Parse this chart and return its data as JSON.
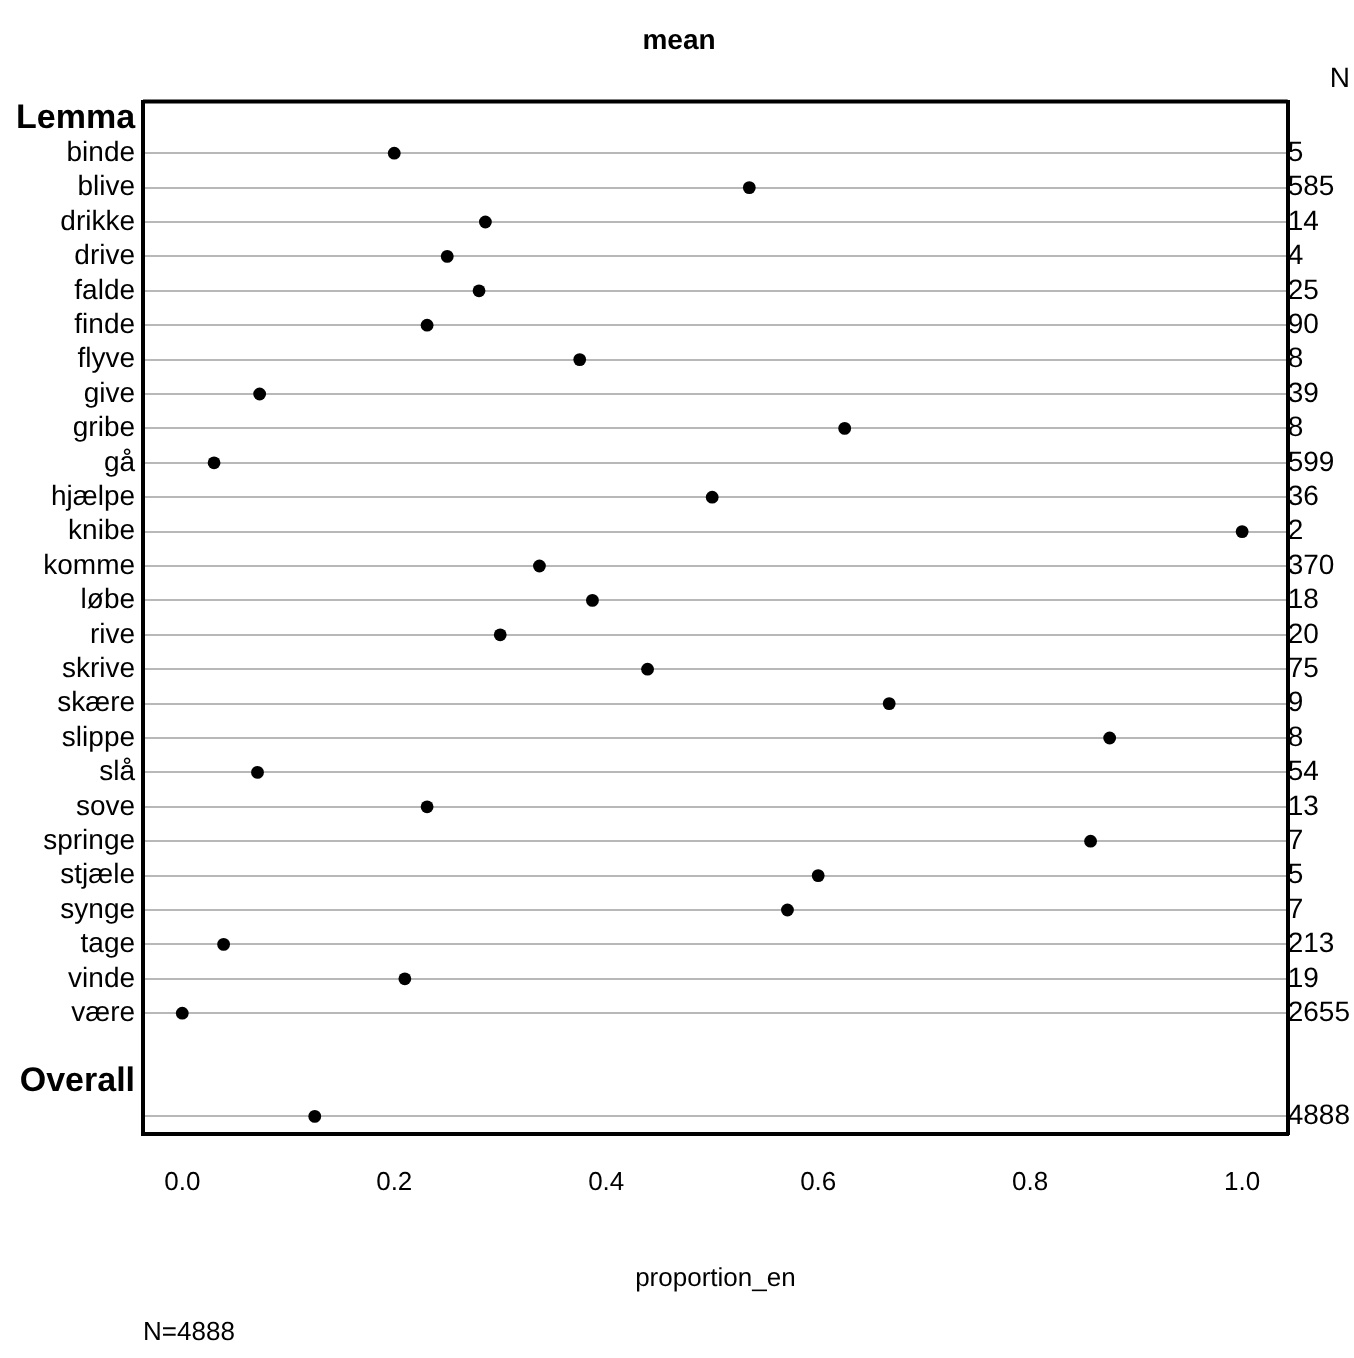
{
  "chart_data": {
    "type": "scatter",
    "orientation": "horizontal",
    "title": "mean",
    "xlabel": "proportion_en",
    "y2label": "N",
    "categories": [
      "Lemma",
      "binde",
      "blive",
      "drikke",
      "drive",
      "falde",
      "finde",
      "flyve",
      "give",
      "gribe",
      "gå",
      "hjælpe",
      "knibe",
      "komme",
      "løbe",
      "rive",
      "skrive",
      "skære",
      "slippe",
      "slå",
      "sove",
      "springe",
      "stjæle",
      "synge",
      "tage",
      "vinde",
      "være",
      null,
      "Overall",
      null
    ],
    "y2_categories": [
      null,
      "5",
      "585",
      "14",
      "4",
      "25",
      "90",
      "8",
      "39",
      "8",
      "599",
      "36",
      "2",
      "370",
      "18",
      "20",
      "75",
      "9",
      "8",
      "54",
      "13",
      "7",
      "5",
      "7",
      "213",
      "19",
      "2655",
      null,
      null,
      "4888"
    ],
    "values": [
      null,
      0.2,
      0.535,
      0.286,
      0.25,
      0.28,
      0.231,
      0.375,
      0.073,
      0.625,
      0.03,
      0.5,
      1.0,
      0.337,
      0.387,
      0.3,
      0.439,
      0.667,
      0.875,
      0.071,
      0.231,
      0.857,
      0.6,
      0.571,
      0.039,
      0.21,
      0.0,
      null,
      null,
      0.125
    ],
    "color": "#000000",
    "marker": "circle",
    "grid": "y",
    "xlim": [
      -0.037,
      1.043
    ],
    "xticks": [
      {
        "value": 0,
        "label": "0.0"
      },
      0.2,
      0.4,
      0.6,
      0.8,
      {
        "value": 1,
        "label": "1.0"
      }
    ],
    "annotations": [
      "N=4888"
    ]
  }
}
